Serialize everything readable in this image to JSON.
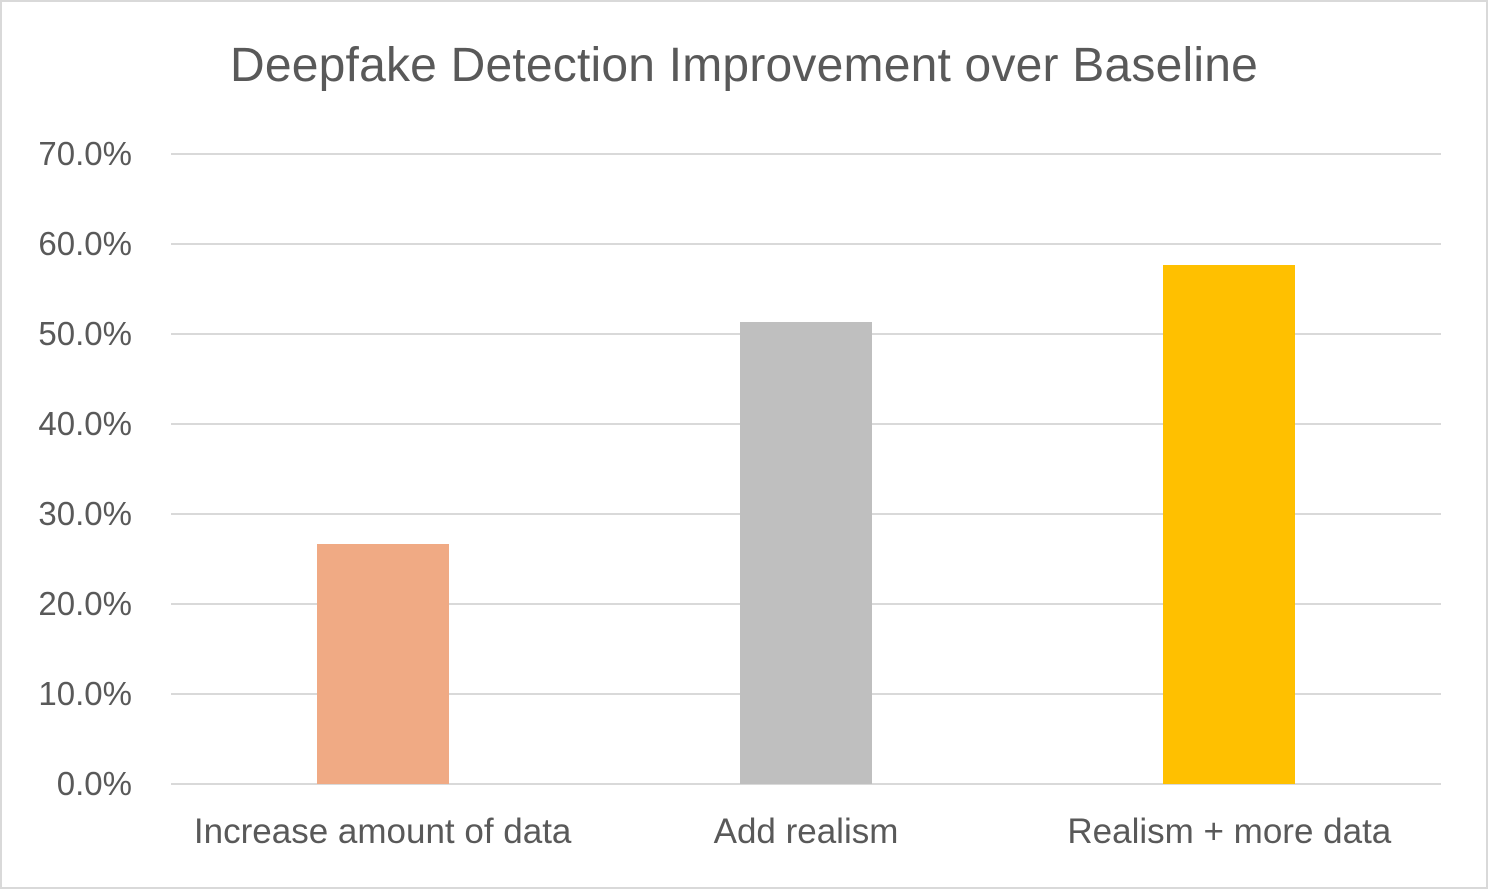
{
  "chart_data": {
    "type": "bar",
    "title": "Deepfake Detection Improvement over Baseline",
    "xlabel": "",
    "ylabel": "",
    "categories": [
      "Increase amount of data",
      "Add realism",
      "Realism + more data"
    ],
    "values": [
      26.7,
      51.3,
      57.7
    ],
    "value_format": "percent",
    "colors": [
      "#f0aa84",
      "#bfbfbf",
      "#ffc000"
    ],
    "ylim": [
      0,
      70
    ],
    "yticks": [
      0,
      10,
      20,
      30,
      40,
      50,
      60,
      70
    ],
    "ytick_labels": [
      "0.0%",
      "10.0%",
      "20.0%",
      "30.0%",
      "40.0%",
      "50.0%",
      "60.0%",
      "70.0%"
    ],
    "grid": true,
    "legend": null
  }
}
